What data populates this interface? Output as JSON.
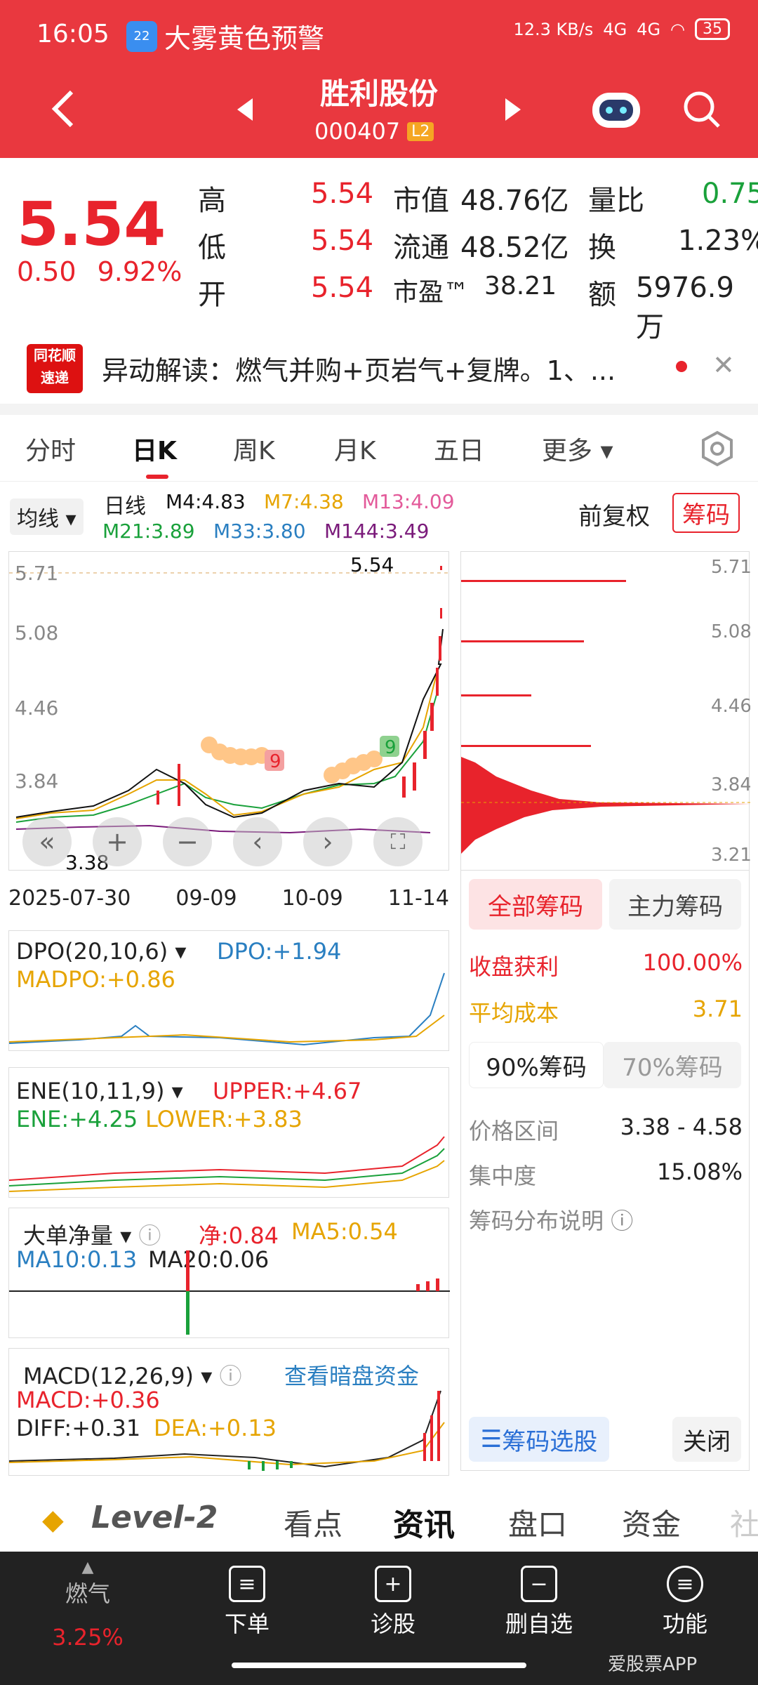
{
  "status": {
    "time": "16:05",
    "alert_badge": "22",
    "alert": "大雾黄色预警",
    "net": "12.3 KB/s",
    "sig1": "4G",
    "sig2": "4G",
    "battery": "35"
  },
  "header": {
    "name": "胜利股份",
    "code": "000407",
    "level": "L2"
  },
  "quote": {
    "price": "5.54",
    "change": "0.50",
    "pct": "9.92%",
    "high_l": "高",
    "high": "5.54",
    "low_l": "低",
    "low": "5.54",
    "open_l": "开",
    "open": "5.54",
    "mv_l": "市值",
    "mv": "48.76亿",
    "flt_l": "流通",
    "flt": "48.52亿",
    "pe_l": "市盈™",
    "pe": "38.21",
    "vr_l": "量比",
    "vr": "0.75",
    "to_l": "换",
    "to": "1.23%",
    "amt_l": "额",
    "amt": "5976.9万"
  },
  "news": {
    "logo1": "同花顺",
    "logo2": "速递",
    "text": "异动解读：燃气并购+页岩气+复牌。1、..."
  },
  "tabs": [
    "分时",
    "日K",
    "周K",
    "月K",
    "五日",
    "更多"
  ],
  "ma": {
    "sel": "均线",
    "label": "日线",
    "m4": "M4:4.83",
    "m7": "M7:4.38",
    "m13": "M13:4.09",
    "m21": "M21:3.89",
    "m33": "M33:3.80",
    "m144": "M144:3.49",
    "fq": "前复权",
    "chip": "筹码"
  },
  "kchart": {
    "y": [
      "5.71",
      "5.08",
      "4.46",
      "3.84"
    ],
    "hi": "5.54",
    "lo": "3.38",
    "x": [
      "2025-07-30",
      "09-09",
      "10-09",
      "11-14"
    ],
    "n1": "9",
    "n2": "9"
  },
  "chip": {
    "y": [
      "5.71",
      "5.08",
      "4.46",
      "3.84",
      "3.21"
    ],
    "t1": "全部筹码",
    "t2": "主力筹码",
    "profit_l": "收盘获利",
    "profit": "100.00%",
    "avg_l": "平均成本",
    "avg": "3.71",
    "p90": "90%筹码",
    "p70": "70%筹码",
    "range_l": "价格区间",
    "range": "3.38 - 4.58",
    "conc_l": "集中度",
    "conc": "15.08%",
    "desc": "筹码分布说明",
    "pick": "筹码选股",
    "close": "关闭"
  },
  "dpo": {
    "title": "DPO(20,10,6)",
    "v1": "DPO:+1.94",
    "v2": "MADPO:+0.86"
  },
  "ene": {
    "title": "ENE(10,11,9)",
    "up": "UPPER:+4.67",
    "ene": "ENE:+4.25",
    "low": "LOWER:+3.83"
  },
  "ddx": {
    "title": "大单净量",
    "v1": "净:0.84",
    "v2": "MA5:0.54",
    "v3": "MA10:0.13",
    "v4": "MA20:0.06"
  },
  "macd": {
    "title": "MACD(12,26,9)",
    "link": "查看暗盘资金",
    "v1": "MACD:+0.36",
    "v2": "DIFF:+0.31",
    "v3": "DEA:+0.13"
  },
  "mtabs": [
    "Level-2",
    "看点",
    "资讯",
    "盘口",
    "资金",
    "社"
  ],
  "bottom": {
    "sector": "燃气",
    "sector_pct": "3.25%",
    "items": [
      "下单",
      "诊股",
      "删自选",
      "功能"
    ],
    "wm": "爱股票APP"
  }
}
